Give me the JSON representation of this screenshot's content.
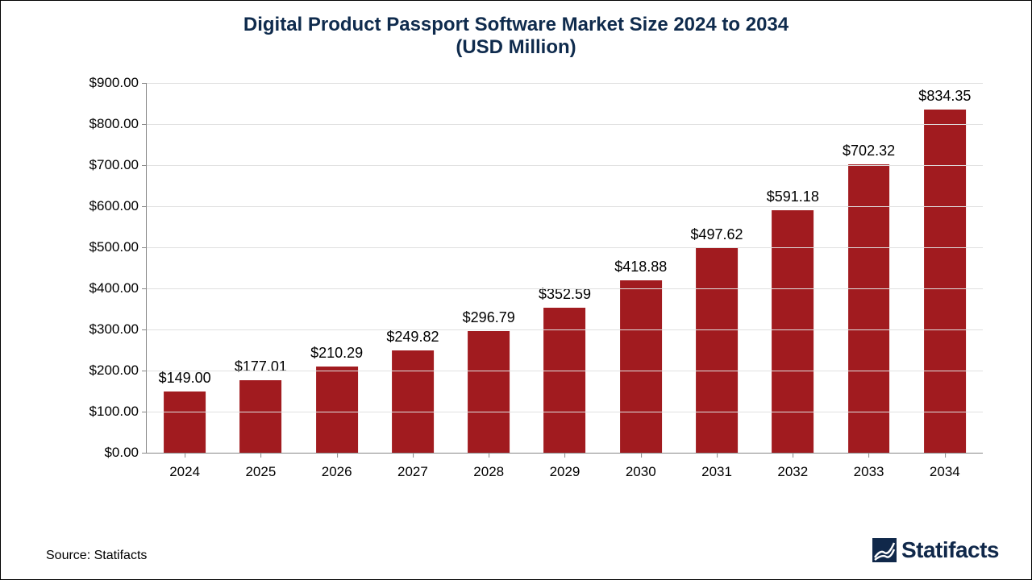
{
  "chart": {
    "type": "bar",
    "title_line1": "Digital Product Passport Software Market Size 2024 to 2034",
    "title_line2": "(USD Million)",
    "title_color": "#0f2b4d",
    "title_fontsize": 24,
    "categories": [
      "2024",
      "2025",
      "2026",
      "2027",
      "2028",
      "2029",
      "2030",
      "2031",
      "2032",
      "2033",
      "2034"
    ],
    "values": [
      149.0,
      177.01,
      210.29,
      249.82,
      296.79,
      352.59,
      418.88,
      497.62,
      591.18,
      702.32,
      834.35
    ],
    "value_labels": [
      "$149.00",
      "$177.01",
      "$210.29",
      "$249.82",
      "$296.79",
      "$352.59",
      "$418.88",
      "$497.62",
      "$591.18",
      "$702.32",
      "$834.35"
    ],
    "bar_color": "#a11b1f",
    "ylim": [
      0,
      900
    ],
    "ytick_step": 100,
    "ytick_labels": [
      "$0.00",
      "$100.00",
      "$200.00",
      "$300.00",
      "$400.00",
      "$500.00",
      "$600.00",
      "$700.00",
      "$800.00",
      "$900.00"
    ],
    "axis_line_color": "#888888",
    "grid_color": "#e0e0e0",
    "tick_fontsize": 17,
    "value_label_fontsize": 18,
    "bar_width_ratio": 0.55,
    "background_color": "#ffffff"
  },
  "footer": {
    "source_text": "Source: Statifacts",
    "source_fontsize": 16,
    "brand_name": "Statifacts",
    "brand_color": "#10284a",
    "brand_fontsize": 28
  }
}
